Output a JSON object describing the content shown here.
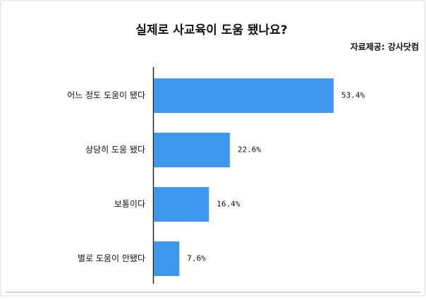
{
  "chart_data": {
    "type": "bar",
    "orientation": "horizontal",
    "title": "실제로 사교육이 도움 됐나요?",
    "source": "자료제공: 강사닷컴",
    "categories": [
      "어느 정도 도움이 됐다",
      "상당히 도움 됐다",
      "보통이다",
      "별로 도움이 안됐다"
    ],
    "values": [
      53.4,
      22.6,
      16.4,
      7.6
    ],
    "value_labels": [
      "53.4%",
      "22.6%",
      "16.4%",
      "7.6%"
    ],
    "color": "#3d97ef"
  }
}
